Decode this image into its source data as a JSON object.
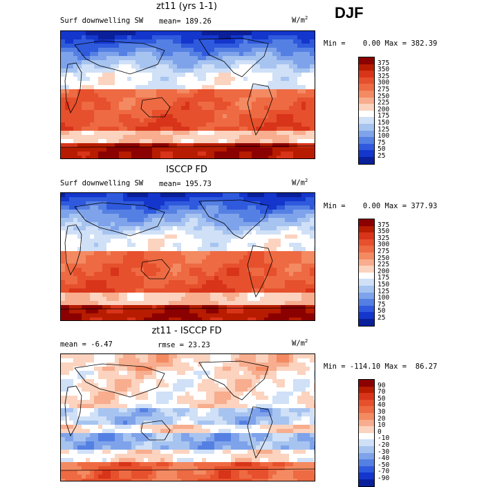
{
  "season": "DJF",
  "panels": [
    {
      "title": "zt11 (yrs 1-1)",
      "left_label": "Surf downwelling SW",
      "center_label": "mean= 189.26",
      "units_base": "W/m",
      "units_sup": "2",
      "minmax": "Min =    0.00 Max = 382.39",
      "colorbar_labels": [
        "375",
        "350",
        "325",
        "300",
        "275",
        "250",
        "225",
        "200",
        "175",
        "150",
        "125",
        "100",
        "75",
        "50",
        "25"
      ],
      "palette": "sw"
    },
    {
      "title": "ISCCP FD",
      "left_label": "Surf downwelling SW",
      "center_label": "mean= 195.73",
      "units_base": "W/m",
      "units_sup": "2",
      "minmax": "Min =    0.00 Max = 377.93",
      "colorbar_labels": [
        "375",
        "350",
        "325",
        "300",
        "275",
        "250",
        "225",
        "200",
        "175",
        "150",
        "125",
        "100",
        "75",
        "50",
        "25"
      ],
      "palette": "sw"
    },
    {
      "title": "zt11 - ISCCP FD",
      "left_label": "mean =  -6.47",
      "center_label": "rmse =  23.23",
      "units_base": "W/m",
      "units_sup": "2",
      "minmax": "Min = -114.10 Max =  86.27",
      "colorbar_labels": [
        "90",
        "70",
        "50",
        "40",
        "30",
        "20",
        "10",
        "0",
        "-10",
        "-20",
        "-30",
        "-40",
        "-50",
        "-70",
        "-90"
      ],
      "palette": "diff"
    }
  ],
  "colors": {
    "sw": [
      "#8b0000",
      "#b71c00",
      "#d8341a",
      "#e6502c",
      "#ee6a43",
      "#f38a62",
      "#f7ad8e",
      "#fbd3bf",
      "#ffffff",
      "#cfe0f7",
      "#a7c4f0",
      "#7fa3ea",
      "#5580e3",
      "#2f5add",
      "#1436cc",
      "#0a1f9a"
    ],
    "diff": [
      "#8b0000",
      "#b71c00",
      "#d8341a",
      "#e6502c",
      "#ee6a43",
      "#f38a62",
      "#f7ad8e",
      "#fbd3bf",
      "#ffffff",
      "#cfe0f7",
      "#a7c4f0",
      "#7fa3ea",
      "#5580e3",
      "#2f5add",
      "#1436cc",
      "#0a1f9a"
    ]
  }
}
